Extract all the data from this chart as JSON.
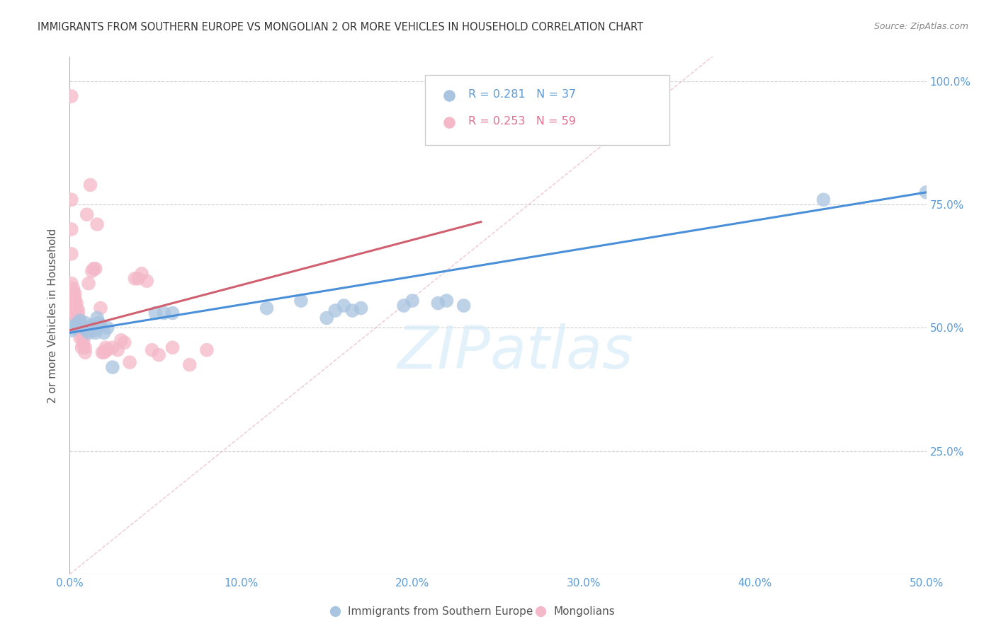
{
  "title": "IMMIGRANTS FROM SOUTHERN EUROPE VS MONGOLIAN 2 OR MORE VEHICLES IN HOUSEHOLD CORRELATION CHART",
  "source": "Source: ZipAtlas.com",
  "ylabel": "2 or more Vehicles in Household",
  "xlim": [
    0.0,
    0.5
  ],
  "ylim": [
    0.0,
    1.05
  ],
  "xtick_labels": [
    "0.0%",
    "10.0%",
    "20.0%",
    "30.0%",
    "40.0%",
    "50.0%"
  ],
  "xtick_vals": [
    0.0,
    0.1,
    0.2,
    0.3,
    0.4,
    0.5
  ],
  "ytick_labels": [
    "25.0%",
    "50.0%",
    "75.0%",
    "100.0%"
  ],
  "ytick_vals": [
    0.25,
    0.5,
    0.75,
    1.0
  ],
  "legend1_label": "Immigrants from Southern Europe",
  "legend2_label": "Mongolians",
  "r1": 0.281,
  "n1": 37,
  "r2": 0.253,
  "n2": 59,
  "color_blue": "#a8c4e0",
  "color_pink": "#f4b8c8",
  "line_blue": "#4a90d9",
  "line_pink": "#d06070",
  "watermark_color": "#d0e8f8",
  "blue_x": [
    0.001,
    0.002,
    0.003,
    0.005,
    0.006,
    0.007,
    0.008,
    0.009,
    0.01,
    0.011,
    0.012,
    0.013,
    0.014,
    0.015,
    0.016,
    0.017,
    0.018,
    0.02,
    0.022,
    0.025,
    0.05,
    0.055,
    0.06,
    0.115,
    0.135,
    0.15,
    0.155,
    0.16,
    0.165,
    0.17,
    0.195,
    0.2,
    0.215,
    0.22,
    0.23,
    0.44,
    0.5
  ],
  "blue_y": [
    0.495,
    0.5,
    0.505,
    0.51,
    0.515,
    0.505,
    0.5,
    0.51,
    0.495,
    0.49,
    0.5,
    0.505,
    0.495,
    0.49,
    0.52,
    0.51,
    0.505,
    0.49,
    0.5,
    0.42,
    0.53,
    0.53,
    0.53,
    0.54,
    0.555,
    0.52,
    0.535,
    0.545,
    0.535,
    0.54,
    0.545,
    0.555,
    0.55,
    0.555,
    0.545,
    0.76,
    0.775
  ],
  "pink_x": [
    0.001,
    0.001,
    0.001,
    0.001,
    0.001,
    0.002,
    0.002,
    0.002,
    0.002,
    0.002,
    0.003,
    0.003,
    0.003,
    0.003,
    0.003,
    0.004,
    0.004,
    0.004,
    0.004,
    0.005,
    0.005,
    0.005,
    0.005,
    0.006,
    0.006,
    0.006,
    0.007,
    0.007,
    0.007,
    0.008,
    0.008,
    0.009,
    0.009,
    0.01,
    0.011,
    0.012,
    0.013,
    0.014,
    0.015,
    0.016,
    0.018,
    0.019,
    0.02,
    0.021,
    0.022,
    0.025,
    0.028,
    0.03,
    0.032,
    0.035,
    0.038,
    0.04,
    0.042,
    0.045,
    0.048,
    0.052,
    0.06,
    0.07,
    0.08
  ],
  "pink_y": [
    0.97,
    0.76,
    0.7,
    0.65,
    0.59,
    0.58,
    0.57,
    0.56,
    0.545,
    0.53,
    0.57,
    0.56,
    0.555,
    0.545,
    0.535,
    0.55,
    0.54,
    0.53,
    0.52,
    0.535,
    0.525,
    0.515,
    0.505,
    0.505,
    0.495,
    0.48,
    0.495,
    0.485,
    0.46,
    0.475,
    0.465,
    0.46,
    0.45,
    0.73,
    0.59,
    0.79,
    0.615,
    0.62,
    0.62,
    0.71,
    0.54,
    0.45,
    0.45,
    0.46,
    0.455,
    0.46,
    0.455,
    0.475,
    0.47,
    0.43,
    0.6,
    0.6,
    0.61,
    0.595,
    0.455,
    0.445,
    0.46,
    0.425,
    0.455
  ],
  "blue_line_x0": 0.0,
  "blue_line_y0": 0.49,
  "blue_line_x1": 0.5,
  "blue_line_y1": 0.775,
  "pink_line_x0": 0.0,
  "pink_line_y0": 0.495,
  "pink_line_x1": 0.24,
  "pink_line_y1": 0.715
}
